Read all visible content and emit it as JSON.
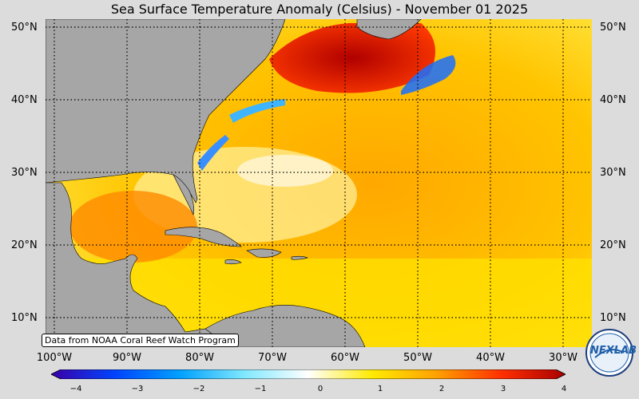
{
  "title": "Sea Surface Temperature Anomaly (Celsius) - November 01 2025",
  "lat_labels": [
    "50°N",
    "40°N",
    "30°N",
    "20°N",
    "10°N"
  ],
  "lon_labels": [
    "100°W",
    "90°W",
    "80°W",
    "70°W",
    "60°W",
    "50°W",
    "40°W",
    "30°W"
  ],
  "credit": "Data from NOAA Coral Reef Watch Program",
  "colorbar": {
    "ticks": [
      "−4",
      "−3",
      "−2",
      "−1",
      "0",
      "1",
      "2",
      "3",
      "4"
    ],
    "colors": [
      "#3b00a8",
      "#0044ff",
      "#00a0ff",
      "#7fe8ff",
      "#ffffff",
      "#ffea00",
      "#ffa000",
      "#ff3000",
      "#a80000"
    ]
  },
  "logo_text": "NEXLAB",
  "colors": {
    "land": "#a6a6a6",
    "ocean_warm": "#ffb000",
    "ocean_mild": "#ffe040",
    "hot": "#c80000",
    "cold": "#1a7fff"
  }
}
